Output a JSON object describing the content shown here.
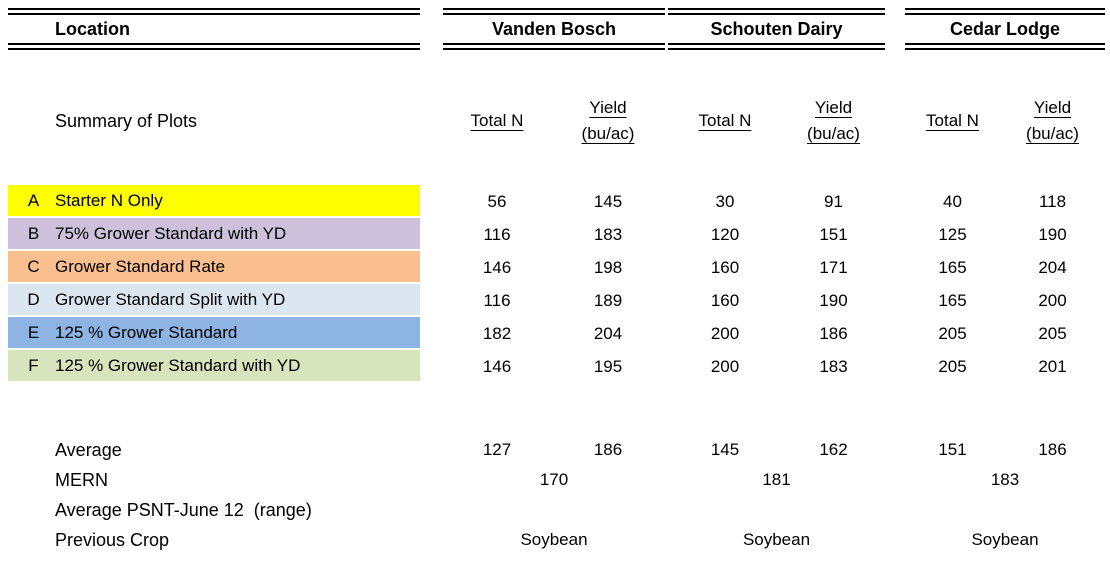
{
  "table": {
    "location_header": "Location",
    "row_header": "Summary of Plots",
    "locations": [
      {
        "name": "Vanden Bosch",
        "total_n_label": "Total N",
        "yield_label": "Yield",
        "yield_unit": "(bu/ac)"
      },
      {
        "name": "Schouten Dairy",
        "total_n_label": "Total N",
        "yield_label": "Yield",
        "yield_unit": "(bu/ac)"
      },
      {
        "name": "Cedar Lodge",
        "total_n_label": "Total N",
        "yield_label": "Yield",
        "yield_unit": "(bu/ac)"
      }
    ],
    "plots": [
      {
        "letter": "A",
        "label": "Starter N Only",
        "color": "#FFFF00",
        "values": [
          56,
          145,
          30,
          91,
          40,
          118
        ]
      },
      {
        "letter": "B",
        "label": "75% Grower Standard with YD",
        "color": "#CCC0DA",
        "values": [
          116,
          183,
          120,
          151,
          125,
          190
        ]
      },
      {
        "letter": "C",
        "label": "Grower Standard Rate",
        "color": "#FABF8F",
        "values": [
          146,
          198,
          160,
          171,
          165,
          204
        ]
      },
      {
        "letter": "D",
        "label": "Grower Standard Split with YD",
        "color": "#DCE6F1",
        "values": [
          116,
          189,
          160,
          190,
          165,
          200
        ]
      },
      {
        "letter": "E",
        "label": "125 % Grower Standard",
        "color": "#8DB4E2",
        "values": [
          182,
          204,
          200,
          186,
          205,
          205
        ]
      },
      {
        "letter": "F",
        "label": "125 % Grower Standard with YD",
        "color": "#D8E4BC",
        "values": [
          146,
          195,
          200,
          183,
          205,
          201
        ]
      }
    ],
    "summary": {
      "average_label": "Average",
      "average_values": [
        127,
        186,
        145,
        162,
        151,
        186
      ],
      "mern_label": "MERN",
      "mern_values": [
        170,
        181,
        183
      ],
      "psnt_label": "Average PSNT-June 12  (range)",
      "previous_crop_label": "Previous Crop",
      "previous_crop_values": [
        "Soybean",
        "Soybean",
        "Soybean"
      ]
    }
  }
}
